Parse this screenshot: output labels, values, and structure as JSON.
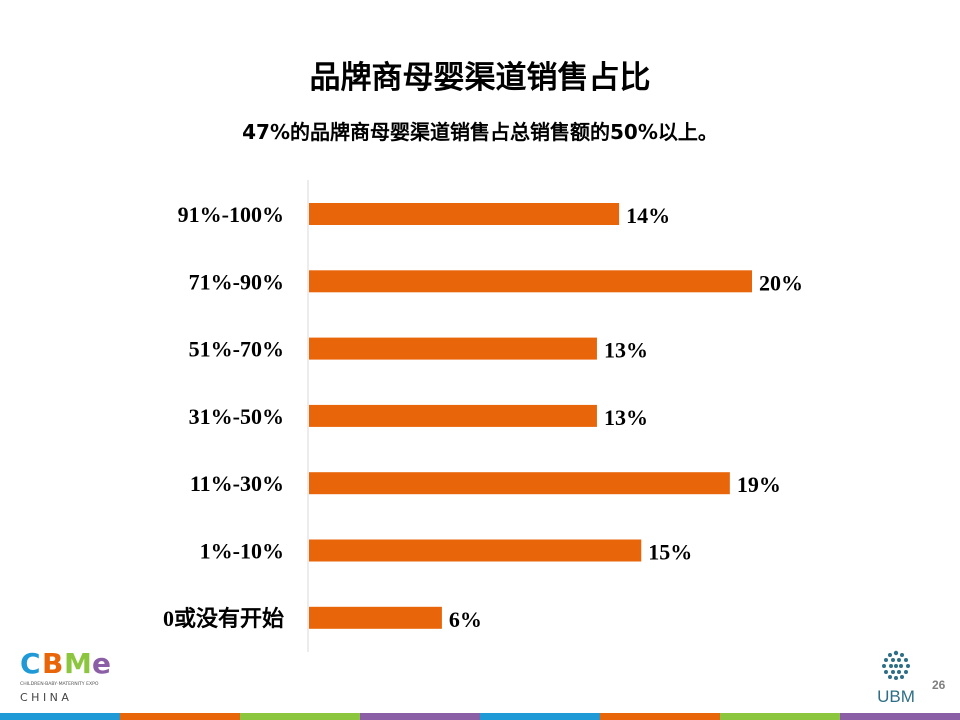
{
  "slide": {
    "title": "品牌商母婴渠道销售占比",
    "subtitle": "47%的品牌商母婴渠道销售占总销售额的50%以上。",
    "page_number": "26"
  },
  "logos": {
    "left_brand": "CBME",
    "left_tagline": "CHILDREN·BABY·MATERNITY EXPO",
    "left_country": "C H I N A",
    "right_brand": "UBM"
  },
  "colors": {
    "bar": "#E8650A",
    "axis": "#D9D9D9",
    "bottom_stripes": [
      "#1F9AD6",
      "#E8650A",
      "#8CC63F",
      "#8A5FA5",
      "#1F9AD6",
      "#E8650A",
      "#8CC63F",
      "#8A5FA5"
    ]
  },
  "chart_data": {
    "type": "bar",
    "orientation": "horizontal",
    "categories": [
      "91%-100%",
      "71%-90%",
      "51%-70%",
      "31%-50%",
      "11%-30%",
      "1%-10%",
      "0或没有开始"
    ],
    "values": [
      14,
      20,
      13,
      13,
      19,
      15,
      6
    ],
    "value_labels": [
      "14%",
      "20%",
      "13%",
      "13%",
      "19%",
      "15%",
      "6%"
    ],
    "xlim": [
      0,
      20
    ],
    "grid": false,
    "legend": "none"
  }
}
